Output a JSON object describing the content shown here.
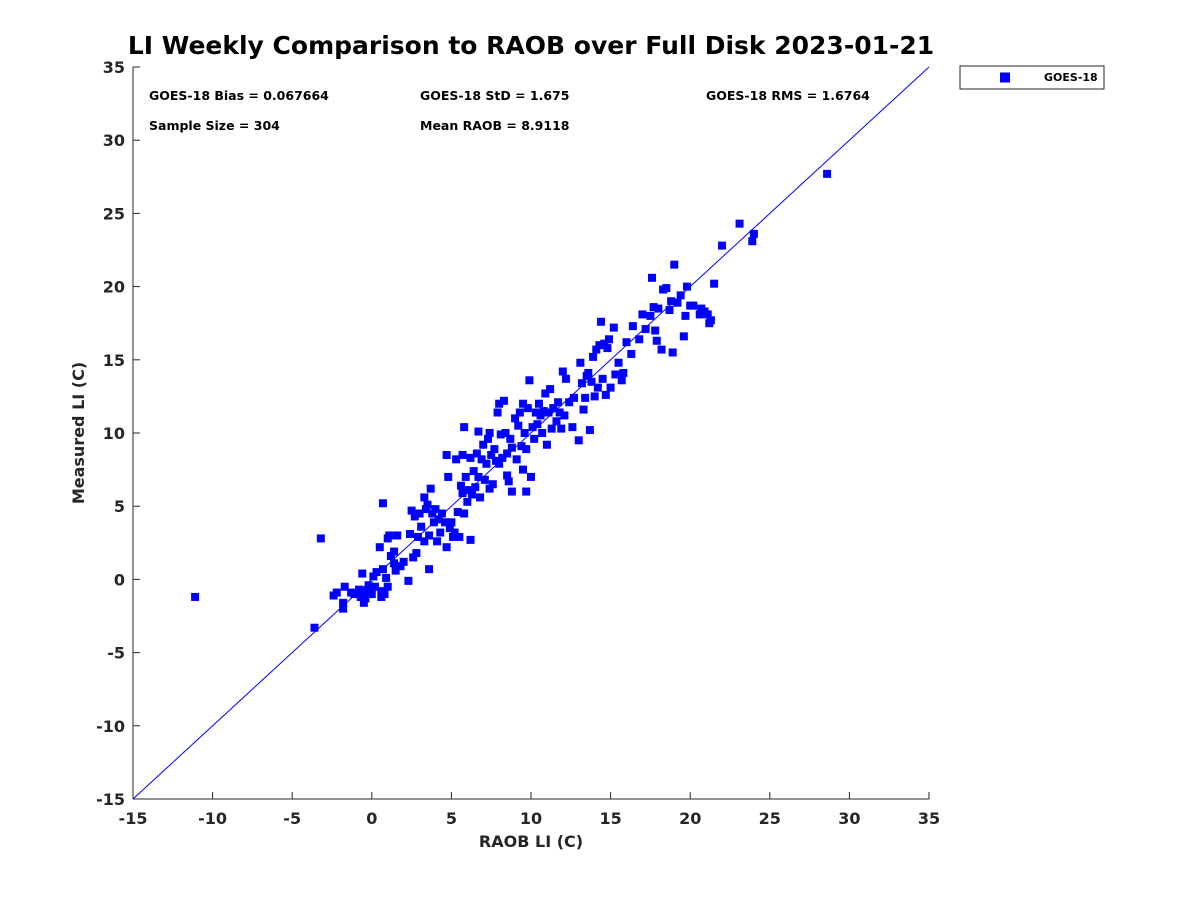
{
  "chart_data": {
    "type": "scatter",
    "title": "LI Weekly Comparison to RAOB over Full Disk 2023-01-21",
    "xlabel": "RAOB LI (C)",
    "ylabel": "Measured LI (C)",
    "xlim": [
      -15,
      35
    ],
    "ylim": [
      -15,
      35
    ],
    "xticks": [
      -15,
      -10,
      -5,
      0,
      5,
      10,
      15,
      20,
      25,
      30,
      35
    ],
    "yticks": [
      -15,
      -10,
      -5,
      0,
      5,
      10,
      15,
      20,
      25,
      30,
      35
    ],
    "grid": false,
    "legend_position": "outside-top-right",
    "reference_line": "y = x",
    "stats": [
      "GOES-18 Bias = 0.067664",
      "GOES-18 StD = 1.675",
      "GOES-18 RMS = 1.6764",
      "Sample Size = 304",
      "Mean RAOB = 8.9118"
    ],
    "series": [
      {
        "name": "GOES-18",
        "color": "#0000ff",
        "marker": "square",
        "points": [
          [
            -11.1,
            -1.2
          ],
          [
            -3.6,
            -3.3
          ],
          [
            -3.2,
            2.8
          ],
          [
            -2.4,
            -1.1
          ],
          [
            -2.2,
            -0.9
          ],
          [
            -1.8,
            -1.6
          ],
          [
            -1.8,
            -2.0
          ],
          [
            -1.7,
            -0.5
          ],
          [
            -1.3,
            -0.9
          ],
          [
            -1.1,
            -1.0
          ],
          [
            -0.8,
            -0.7
          ],
          [
            -0.7,
            -1.2
          ],
          [
            -0.6,
            0.4
          ],
          [
            -0.5,
            -1.6
          ],
          [
            -0.4,
            -1.3
          ],
          [
            -0.3,
            -0.8
          ],
          [
            -0.2,
            -0.4
          ],
          [
            0.0,
            -1.0
          ],
          [
            0.1,
            0.2
          ],
          [
            0.2,
            -0.5
          ],
          [
            0.3,
            0.5
          ],
          [
            0.5,
            2.2
          ],
          [
            0.6,
            -0.8
          ],
          [
            0.6,
            -1.2
          ],
          [
            0.7,
            0.7
          ],
          [
            0.7,
            5.2
          ],
          [
            0.8,
            -1.0
          ],
          [
            0.9,
            0.1
          ],
          [
            1.0,
            2.8
          ],
          [
            1.0,
            -0.5
          ],
          [
            1.1,
            3.0
          ],
          [
            1.2,
            1.6
          ],
          [
            1.4,
            1.9
          ],
          [
            1.4,
            1.1
          ],
          [
            1.5,
            0.6
          ],
          [
            1.6,
            3.0
          ],
          [
            1.8,
            0.9
          ],
          [
            2.0,
            1.2
          ],
          [
            2.3,
            -0.1
          ],
          [
            2.4,
            3.1
          ],
          [
            2.5,
            4.7
          ],
          [
            2.6,
            1.5
          ],
          [
            2.7,
            4.3
          ],
          [
            2.8,
            1.8
          ],
          [
            2.9,
            2.9
          ],
          [
            3.0,
            4.5
          ],
          [
            3.1,
            3.6
          ],
          [
            3.3,
            2.6
          ],
          [
            3.3,
            5.6
          ],
          [
            3.4,
            4.8
          ],
          [
            3.5,
            5.1
          ],
          [
            3.6,
            0.7
          ],
          [
            3.6,
            3.0
          ],
          [
            3.7,
            6.2
          ],
          [
            3.8,
            4.5
          ],
          [
            3.9,
            3.9
          ],
          [
            4.0,
            4.8
          ],
          [
            4.1,
            2.6
          ],
          [
            4.2,
            4.1
          ],
          [
            4.3,
            3.2
          ],
          [
            4.4,
            4.5
          ],
          [
            4.6,
            3.9
          ],
          [
            4.7,
            2.2
          ],
          [
            4.7,
            8.5
          ],
          [
            4.8,
            7.0
          ],
          [
            4.9,
            3.5
          ],
          [
            5.0,
            3.9
          ],
          [
            5.1,
            2.9
          ],
          [
            5.2,
            3.2
          ],
          [
            5.3,
            8.2
          ],
          [
            5.4,
            4.6
          ],
          [
            5.5,
            2.9
          ],
          [
            5.6,
            6.4
          ],
          [
            5.7,
            5.9
          ],
          [
            5.7,
            8.5
          ],
          [
            5.8,
            10.4
          ],
          [
            5.8,
            4.5
          ],
          [
            5.9,
            7.0
          ],
          [
            6.0,
            5.3
          ],
          [
            6.1,
            6.1
          ],
          [
            6.2,
            8.3
          ],
          [
            6.2,
            2.7
          ],
          [
            6.3,
            5.8
          ],
          [
            6.4,
            7.4
          ],
          [
            6.5,
            6.3
          ],
          [
            6.6,
            8.6
          ],
          [
            6.7,
            10.1
          ],
          [
            6.7,
            7.0
          ],
          [
            6.8,
            5.6
          ],
          [
            6.9,
            8.2
          ],
          [
            7.0,
            9.2
          ],
          [
            7.1,
            6.8
          ],
          [
            7.2,
            7.9
          ],
          [
            7.3,
            9.6
          ],
          [
            7.4,
            6.2
          ],
          [
            7.4,
            10.0
          ],
          [
            7.5,
            8.5
          ],
          [
            7.6,
            6.5
          ],
          [
            7.7,
            8.9
          ],
          [
            7.8,
            8.1
          ],
          [
            7.9,
            11.4
          ],
          [
            8.0,
            12.0
          ],
          [
            8.0,
            7.9
          ],
          [
            8.1,
            9.9
          ],
          [
            8.2,
            8.3
          ],
          [
            8.3,
            12.2
          ],
          [
            8.4,
            10.0
          ],
          [
            8.5,
            8.6
          ],
          [
            8.5,
            7.1
          ],
          [
            8.6,
            6.7
          ],
          [
            8.7,
            9.6
          ],
          [
            8.8,
            6.0
          ],
          [
            8.8,
            9.0
          ],
          [
            9.0,
            11.0
          ],
          [
            9.1,
            8.2
          ],
          [
            9.2,
            10.5
          ],
          [
            9.3,
            11.4
          ],
          [
            9.4,
            9.1
          ],
          [
            9.5,
            12.0
          ],
          [
            9.5,
            7.5
          ],
          [
            9.6,
            10.0
          ],
          [
            9.7,
            8.9
          ],
          [
            9.7,
            6.0
          ],
          [
            9.8,
            11.7
          ],
          [
            9.9,
            13.6
          ],
          [
            10.0,
            7.0
          ],
          [
            10.1,
            10.4
          ],
          [
            10.2,
            9.6
          ],
          [
            10.3,
            11.4
          ],
          [
            10.4,
            10.6
          ],
          [
            10.5,
            12.0
          ],
          [
            10.6,
            11.2
          ],
          [
            10.7,
            10.0
          ],
          [
            10.8,
            11.5
          ],
          [
            10.9,
            12.7
          ],
          [
            11.0,
            9.2
          ],
          [
            11.1,
            11.4
          ],
          [
            11.2,
            13.0
          ],
          [
            11.3,
            10.3
          ],
          [
            11.4,
            11.7
          ],
          [
            11.6,
            10.8
          ],
          [
            11.7,
            12.1
          ],
          [
            11.8,
            11.4
          ],
          [
            11.9,
            10.3
          ],
          [
            12.0,
            14.2
          ],
          [
            12.1,
            11.2
          ],
          [
            12.2,
            13.7
          ],
          [
            12.4,
            12.1
          ],
          [
            12.6,
            10.4
          ],
          [
            12.7,
            12.4
          ],
          [
            13.0,
            9.5
          ],
          [
            13.1,
            14.8
          ],
          [
            13.2,
            13.4
          ],
          [
            13.3,
            11.6
          ],
          [
            13.4,
            12.4
          ],
          [
            13.5,
            13.9
          ],
          [
            13.6,
            14.1
          ],
          [
            13.7,
            10.2
          ],
          [
            13.8,
            13.5
          ],
          [
            13.9,
            15.2
          ],
          [
            14.0,
            12.5
          ],
          [
            14.1,
            15.7
          ],
          [
            14.2,
            13.1
          ],
          [
            14.3,
            16.0
          ],
          [
            14.4,
            17.6
          ],
          [
            14.5,
            13.7
          ],
          [
            14.6,
            16.1
          ],
          [
            14.7,
            12.6
          ],
          [
            14.8,
            15.8
          ],
          [
            14.9,
            16.4
          ],
          [
            15.0,
            13.1
          ],
          [
            15.2,
            17.2
          ],
          [
            15.3,
            14.0
          ],
          [
            15.5,
            14.8
          ],
          [
            15.7,
            13.6
          ],
          [
            15.8,
            14.1
          ],
          [
            16.0,
            16.2
          ],
          [
            16.3,
            15.4
          ],
          [
            16.4,
            17.3
          ],
          [
            16.8,
            16.4
          ],
          [
            17.0,
            18.1
          ],
          [
            17.2,
            17.1
          ],
          [
            17.5,
            18.0
          ],
          [
            17.6,
            20.6
          ],
          [
            17.7,
            18.6
          ],
          [
            17.8,
            17.0
          ],
          [
            17.9,
            16.3
          ],
          [
            18.0,
            18.5
          ],
          [
            18.2,
            15.7
          ],
          [
            18.3,
            19.8
          ],
          [
            18.5,
            19.9
          ],
          [
            18.7,
            18.4
          ],
          [
            18.8,
            19.0
          ],
          [
            18.9,
            15.5
          ],
          [
            19.0,
            21.5
          ],
          [
            19.2,
            18.9
          ],
          [
            19.4,
            19.4
          ],
          [
            19.6,
            16.6
          ],
          [
            19.7,
            18.0
          ],
          [
            19.8,
            20.0
          ],
          [
            20.0,
            18.7
          ],
          [
            20.2,
            18.7
          ],
          [
            20.6,
            18.1
          ],
          [
            20.7,
            18.5
          ],
          [
            20.9,
            18.3
          ],
          [
            21.1,
            18.1
          ],
          [
            21.2,
            17.5
          ],
          [
            21.3,
            17.7
          ],
          [
            21.5,
            20.2
          ],
          [
            22.0,
            22.8
          ],
          [
            23.1,
            24.3
          ],
          [
            23.9,
            23.1
          ],
          [
            24.0,
            23.6
          ],
          [
            28.6,
            27.7
          ]
        ]
      }
    ]
  }
}
